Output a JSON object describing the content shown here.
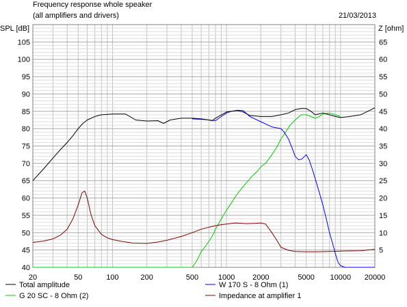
{
  "header": {
    "title": "Frequency response whole speaker",
    "subtitle": "(all amplifiers and drivers)",
    "date": "21/03/2013"
  },
  "chart_data": {
    "type": "line",
    "title": "Frequency response whole speaker",
    "subtitle": "(all amplifiers and drivers)",
    "x_scale": "log",
    "xlim": [
      20,
      20000
    ],
    "x_ticks": [
      20,
      50,
      100,
      200,
      500,
      1000,
      2000,
      5000,
      10000,
      20000
    ],
    "ylabel": "SPL [dB]",
    "ylim": [
      40,
      110
    ],
    "y_ticks": [
      40,
      45,
      50,
      55,
      60,
      65,
      70,
      75,
      80,
      85,
      90,
      95,
      100,
      105
    ],
    "y2label": "Z [ohm]",
    "y2lim": [
      0,
      70
    ],
    "y2_ticks": [
      5,
      10,
      15,
      20,
      25,
      30,
      35,
      40,
      45,
      50,
      55,
      60,
      65
    ],
    "grid": true,
    "legend_position": "bottom",
    "series": [
      {
        "name": "Total amplitude",
        "color": "#000000",
        "axis": "left",
        "x": [
          20,
          25,
          30,
          35,
          40,
          45,
          50,
          55,
          60,
          70,
          80,
          100,
          130,
          160,
          200,
          250,
          280,
          320,
          400,
          500,
          600,
          700,
          750,
          800,
          900,
          1000,
          1100,
          1250,
          1400,
          1600,
          2000,
          2500,
          3000,
          3500,
          4000,
          4500,
          5000,
          5500,
          6000,
          7000,
          8000,
          9000,
          10000,
          12000,
          15000,
          20000
        ],
        "y": [
          65,
          68.5,
          71.5,
          74,
          76,
          78,
          80,
          81.5,
          82.5,
          83.5,
          84,
          84.2,
          84.2,
          82.5,
          82.2,
          82.3,
          81.5,
          82.5,
          83,
          83,
          82.8,
          82.5,
          82.3,
          83,
          84,
          84.8,
          85,
          85.2,
          84.8,
          83.8,
          83.5,
          83.5,
          84,
          84.5,
          85.5,
          85.8,
          85.8,
          85,
          84,
          84.5,
          84,
          83.5,
          83.2,
          83.5,
          84,
          86
        ]
      },
      {
        "name": "W 170 S - 8 Ohm (1)",
        "color": "#0000ff",
        "axis": "left",
        "x": [
          500,
          600,
          700,
          800,
          900,
          1000,
          1100,
          1250,
          1400,
          1600,
          2000,
          2500,
          3000,
          3200,
          3500,
          3800,
          4000,
          4300,
          4600,
          5000,
          5300,
          5700,
          6200,
          7000,
          7500,
          8000,
          8500,
          9000,
          9500,
          10000,
          11000,
          12000,
          15000,
          20000
        ],
        "y": [
          82.8,
          82.7,
          82.5,
          82.3,
          83.5,
          84.5,
          85,
          85.3,
          85.2,
          83.5,
          82,
          80.5,
          80,
          79,
          77,
          74,
          72,
          71,
          71.3,
          72.5,
          71,
          68,
          64,
          58,
          54,
          50,
          47,
          44,
          41.5,
          40.5,
          40,
          40,
          40,
          40
        ]
      },
      {
        "name": "G 20 SC - 8 Ohm (2)",
        "color": "#00cc00",
        "axis": "left",
        "x": [
          20,
          100,
          200,
          400,
          500,
          550,
          600,
          650,
          700,
          750,
          800,
          900,
          1000,
          1100,
          1200,
          1300,
          1500,
          1700,
          1900,
          2000,
          2200,
          2500,
          2800,
          3000,
          3300,
          3600,
          4000,
          4500,
          5000,
          5500,
          6000,
          6500,
          7000,
          8000,
          9000,
          10000
        ],
        "y": [
          40,
          40,
          40,
          40,
          40,
          42,
          44.5,
          46,
          47.5,
          49,
          51,
          54,
          56.5,
          58.5,
          60.5,
          62,
          64.5,
          66.5,
          68,
          69,
          70,
          72.5,
          75,
          77,
          79,
          81,
          82.5,
          84,
          84,
          83.5,
          83,
          83.5,
          84.2,
          84.5,
          84,
          83.5
        ]
      },
      {
        "name": "Impedance at amplifier 1",
        "color": "#800000",
        "axis": "right",
        "x": [
          20,
          25,
          30,
          35,
          40,
          45,
          50,
          54,
          57,
          60,
          65,
          70,
          80,
          90,
          100,
          120,
          150,
          200,
          250,
          300,
          400,
          500,
          600,
          700,
          800,
          900,
          1000,
          1200,
          1500,
          1800,
          2000,
          2200,
          2500,
          2800,
          3000,
          3500,
          4000,
          5000,
          6000,
          8000,
          10000,
          15000,
          20000
        ],
        "y": [
          7.2,
          7.6,
          8.2,
          9.3,
          11,
          14,
          18,
          21.5,
          22,
          20,
          15,
          12,
          9.5,
          8.5,
          8,
          7.5,
          7,
          6.9,
          7.3,
          7.8,
          8.9,
          10,
          11,
          11.6,
          12,
          12.3,
          12.5,
          12.8,
          12.6,
          12.7,
          12.8,
          12.5,
          10,
          7.5,
          5.8,
          4.9,
          4.6,
          4.5,
          4.5,
          4.6,
          4.7,
          4.8,
          5.2
        ]
      }
    ]
  }
}
